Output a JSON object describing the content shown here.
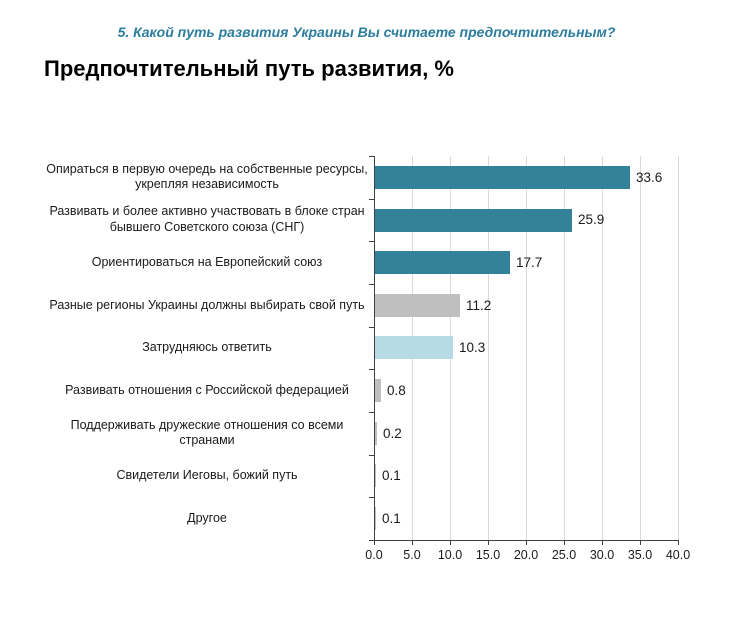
{
  "page": {
    "question_title": "5. Какой путь развития Украины Вы считаете предпочтительным?",
    "main_title": "Предпочтительный путь развития, %"
  },
  "colors": {
    "question_title_teal": "#2C7D9E",
    "bar_teal": "#33829A",
    "bar_gray": "#BFBFBF",
    "bar_light_blue": "#B7DBE6",
    "gridline": "#D9D9D9",
    "axis": "#404040",
    "text": "#1a1a1a"
  },
  "chart_data": {
    "type": "bar",
    "orientation": "horizontal",
    "title": "Предпочтительный путь развития, %",
    "subtitle": "5. Какой путь развития Украины Вы считаете предпочтительным?",
    "xlabel": "",
    "ylabel": "",
    "xlim": [
      0,
      40
    ],
    "grid": true,
    "gridline_step": 5,
    "categories": [
      "Опираться в первую очередь на собственные ресурсы, укрепляя независимость",
      "Развивать и более активно участвовать в блоке стран бывшего Советского союза (СНГ)",
      "Ориентироваться на Европейский союз",
      "Разные регионы Украины должны выбирать свой путь",
      "Затрудняюсь ответить",
      "Развивать отношения с Российской федерацией",
      "Поддерживать дружеские отношения со всеми странами",
      "Свидетели Иеговы, божий путь",
      "Другое"
    ],
    "values": [
      33.6,
      25.9,
      17.7,
      11.2,
      10.3,
      0.8,
      0.2,
      0.1,
      0.1
    ],
    "data_labels": [
      "33.6",
      "25.9",
      "17.7",
      "11.2",
      "10.3",
      "0.8",
      "0.2",
      "0.1",
      "0.1"
    ],
    "bar_colors": [
      "#33829A",
      "#33829A",
      "#33829A",
      "#BFBFBF",
      "#B7DBE6",
      "#BFBFBF",
      "#BFBFBF",
      "#BFBFBF",
      "#BFBFBF"
    ],
    "x_tick_labels": [
      "0.0",
      "5.0",
      "10.0",
      "15.0",
      "20.0",
      "25.0",
      "30.0",
      "35.0",
      "40.0"
    ]
  }
}
